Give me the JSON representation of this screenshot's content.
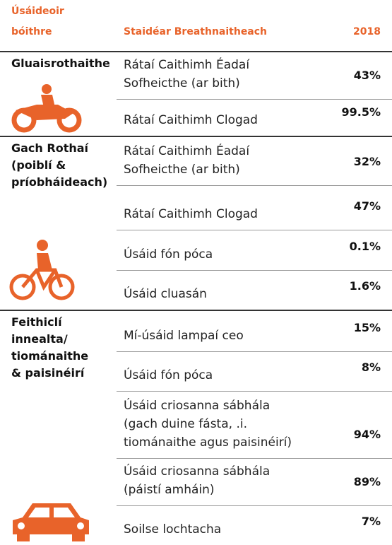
{
  "header": {
    "user_lines": [
      "Úsáideoir",
      "bóithre"
    ],
    "study": "Staidéar Breathnaitheach",
    "year": "2018"
  },
  "groups": [
    {
      "label_lines": [
        "Gluaisrothaithe"
      ],
      "rows": [
        {
          "lines": [
            "Rátaí Caithimh Éadaí",
            "Sofheicthe (ar bith)"
          ],
          "value": "43%"
        },
        {
          "lines": [
            "Rátaí Caithimh Clogad"
          ],
          "value": "99.5%"
        }
      ]
    },
    {
      "label_lines": [
        "Gach Rothaí",
        "(poiblí &",
        "príobháideach)"
      ],
      "rows": [
        {
          "lines": [
            "Rátaí Caithimh Éadaí",
            "Sofheicthe (ar bith)"
          ],
          "value": "32%"
        },
        {
          "lines": [
            "Rátaí Caithimh Clogad"
          ],
          "value": "47%"
        },
        {
          "lines": [
            "Úsáid fón póca"
          ],
          "value": "0.1%"
        },
        {
          "lines": [
            "Úsáid cluasán"
          ],
          "value": "1.6%"
        }
      ]
    },
    {
      "label_lines": [
        "Feithiclí",
        "innealta/",
        "tiománaithe",
        "& paisinéirí"
      ],
      "rows": [
        {
          "lines": [
            "Mí-úsáid lampaí ceo"
          ],
          "value": "15%"
        },
        {
          "lines": [
            "Úsáid fón póca"
          ],
          "value": "8%"
        },
        {
          "lines": [
            "Úsáid criosanna sábhála",
            "(gach duine fásta, .i.",
            "tiománaithe agus paisinéirí)"
          ],
          "value": "94%"
        },
        {
          "lines": [
            "Úsáid criosanna sábhála",
            "(páistí amháin)"
          ],
          "value": "89%"
        },
        {
          "lines": [
            "Soilse lochtacha"
          ],
          "value": "7%"
        }
      ]
    }
  ]
}
